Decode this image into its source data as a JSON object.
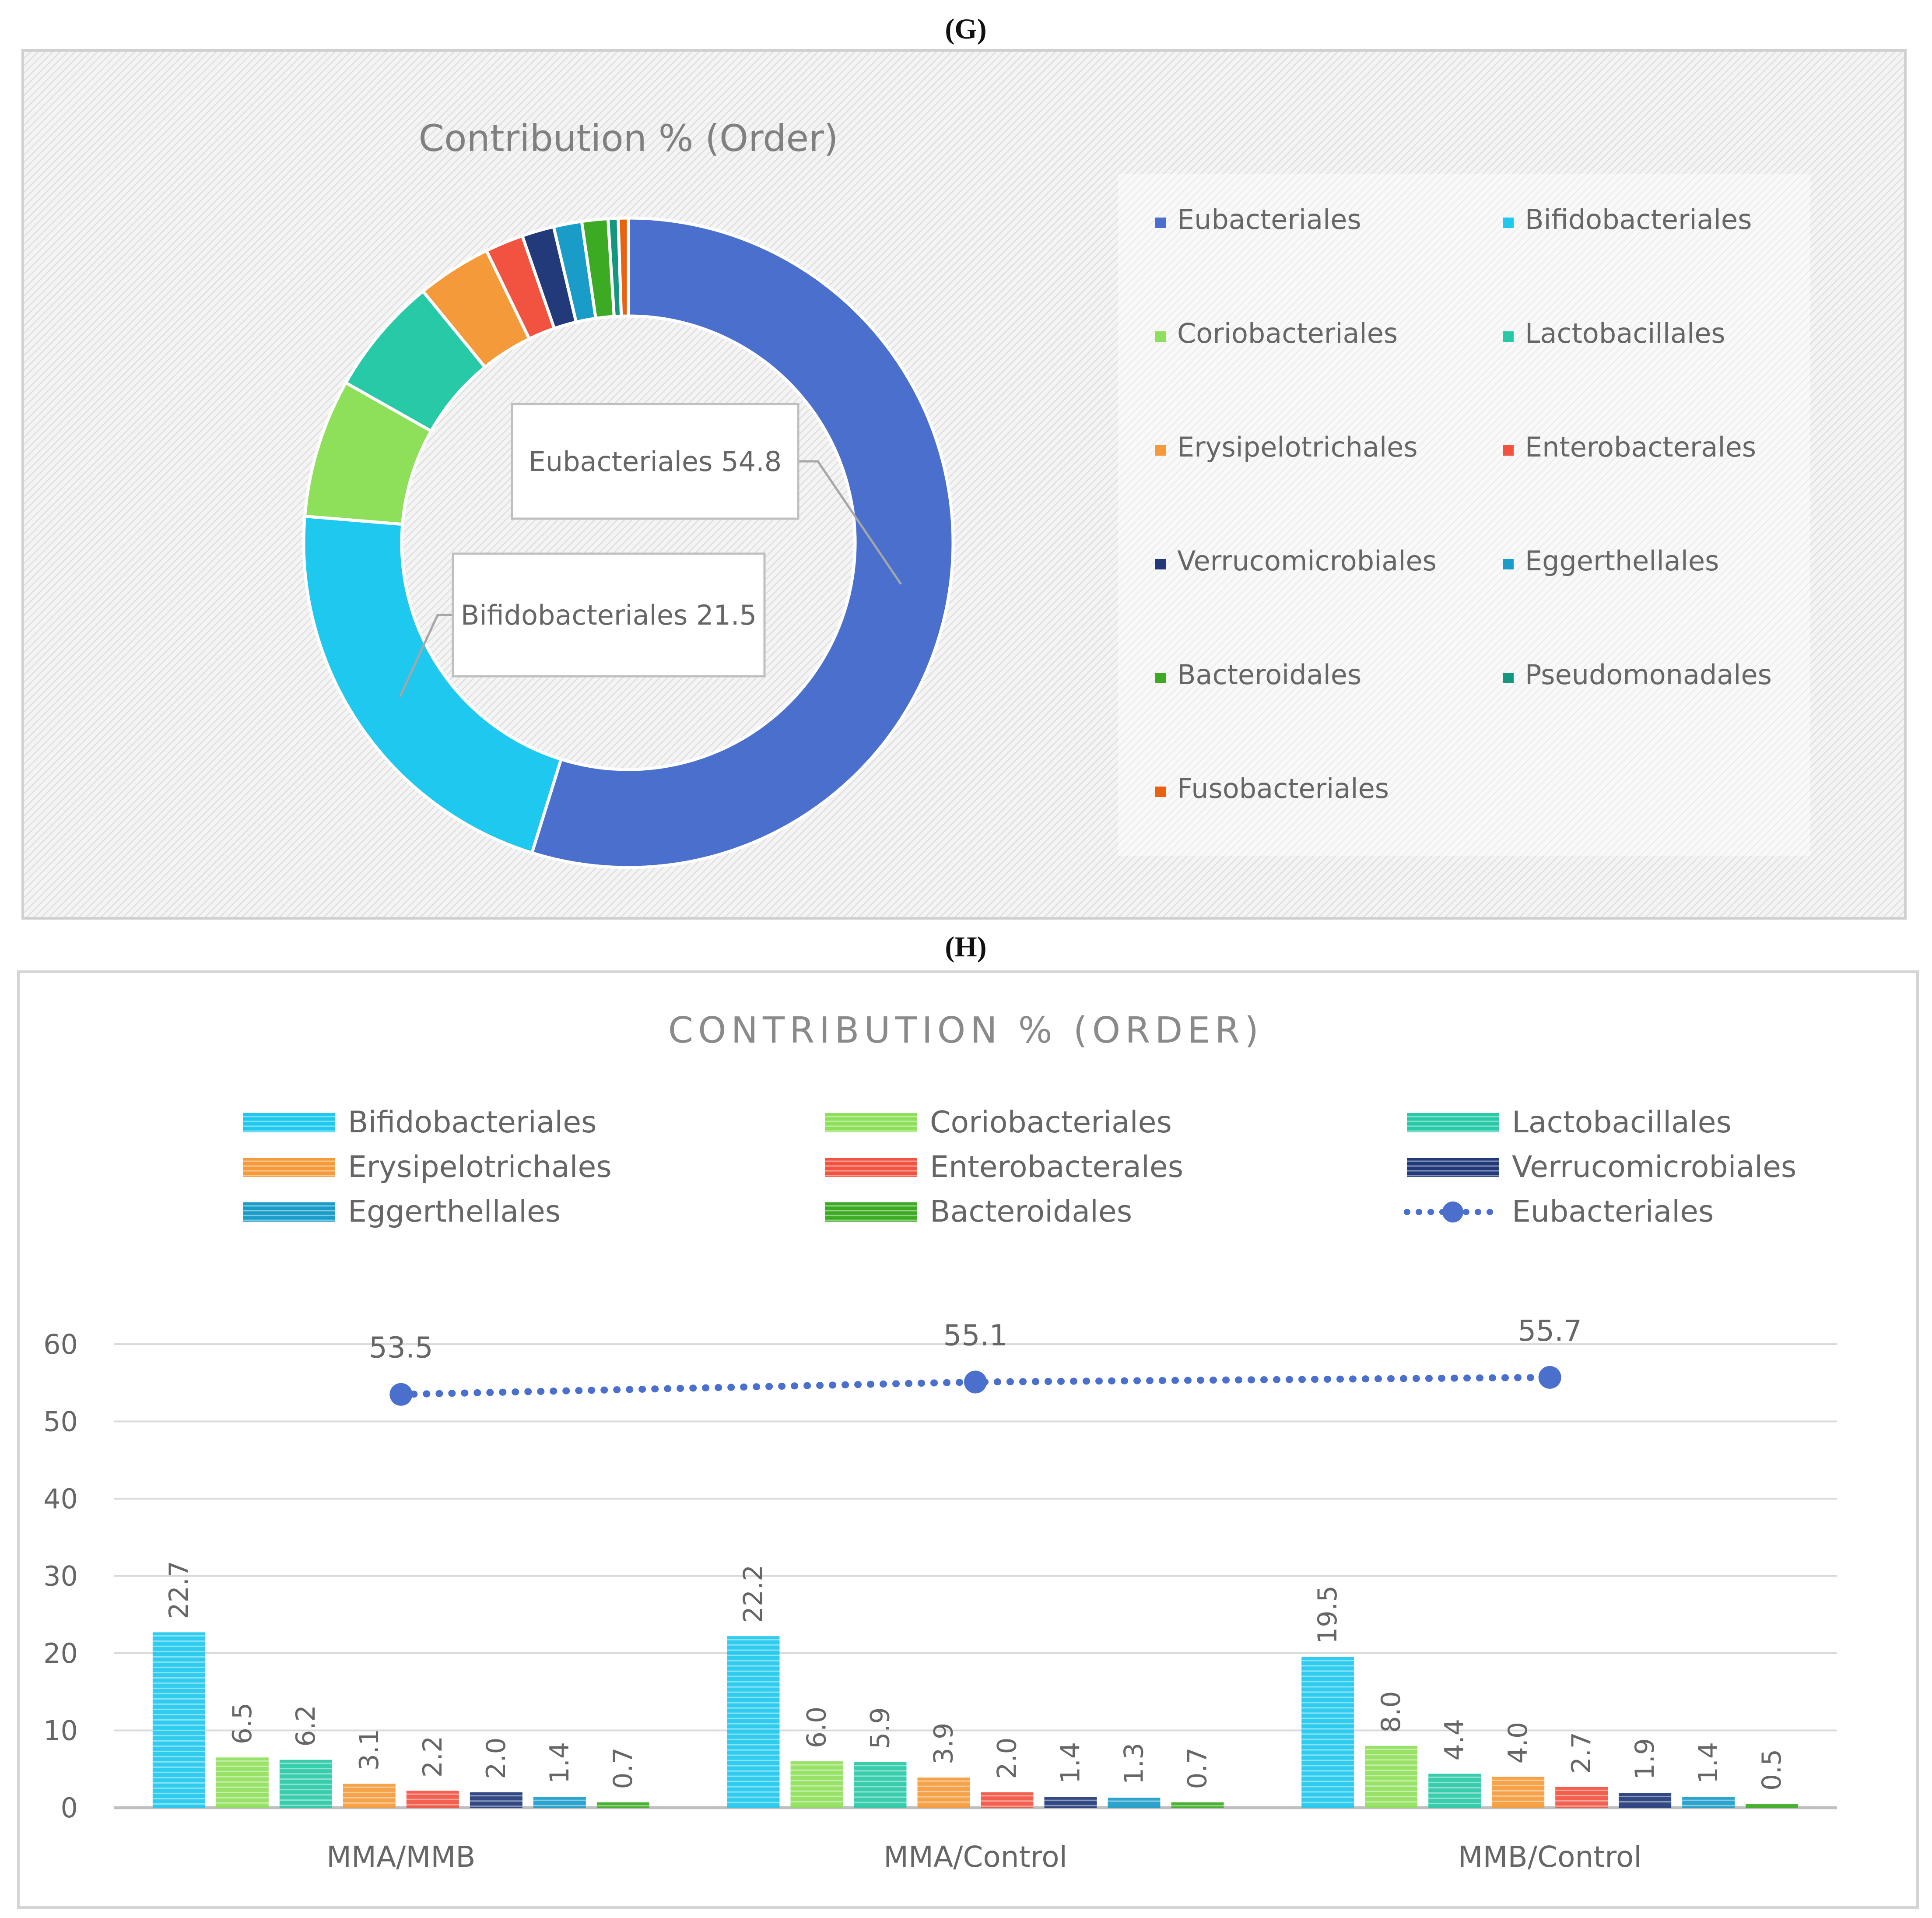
{
  "panels": {
    "g_label": "(G)",
    "h_label": "(H)"
  },
  "colors": {
    "Eubacteriales": "#4a6fcc",
    "Bifidobacteriales": "#1ec8ee",
    "Coriobacteriales": "#8ee05a",
    "Lactobacillales": "#28c9a6",
    "Erysipelotrichales": "#f59a3a",
    "Enterobacterales": "#f25240",
    "Verrucomicrobiales": "#22397a",
    "Eggerthellales": "#1a9cc9",
    "Bacteroidales": "#3cab23",
    "Pseudomonadales": "#13977f",
    "Fusobacteriales": "#e8620f"
  },
  "chart_data": [
    {
      "type": "pie",
      "variant": "donut",
      "title": "Contribution % (Order)",
      "labels": [
        "Eubacteriales",
        "Bifidobacteriales",
        "Coriobacteriales",
        "Lactobacillales",
        "Erysipelotrichales",
        "Enterobacterales",
        "Verrucomicrobiales",
        "Eggerthellales",
        "Bacteroidales",
        "Pseudomonadales",
        "Fusobacteriales"
      ],
      "values": [
        54.8,
        21.5,
        6.9,
        5.9,
        3.7,
        1.9,
        1.6,
        1.4,
        1.3,
        0.5,
        0.5
      ],
      "callouts": [
        {
          "label": "Eubacteriales",
          "value": "54.8"
        },
        {
          "label": "Bifidobacteriales",
          "value": "21.5"
        }
      ],
      "legend": "right"
    },
    {
      "type": "bar",
      "title": "CONTRIBUTION % (ORDER)",
      "categories": [
        "MMA/MMB",
        "MMA/Control",
        "MMB/Control"
      ],
      "series": [
        {
          "name": "Bifidobacteriales",
          "values": [
            22.7,
            22.2,
            19.5
          ]
        },
        {
          "name": "Coriobacteriales",
          "values": [
            6.5,
            6.0,
            8.0
          ]
        },
        {
          "name": "Lactobacillales",
          "values": [
            6.2,
            5.9,
            4.4
          ]
        },
        {
          "name": "Erysipelotrichales",
          "values": [
            3.1,
            3.9,
            4.0
          ]
        },
        {
          "name": "Enterobacterales",
          "values": [
            2.2,
            2.0,
            2.7
          ]
        },
        {
          "name": "Verrucomicrobiales",
          "values": [
            2.0,
            1.4,
            1.9
          ]
        },
        {
          "name": "Eggerthellales",
          "values": [
            1.4,
            1.3,
            1.4
          ]
        },
        {
          "name": "Bacteroidales",
          "values": [
            0.7,
            0.7,
            0.5
          ]
        }
      ],
      "line_series": {
        "name": "Eubacteriales",
        "values": [
          53.5,
          55.1,
          55.7
        ]
      },
      "yticks": [
        0,
        10,
        20,
        30,
        40,
        50,
        60
      ],
      "ylim": [
        0,
        60
      ],
      "legend": "top",
      "grid": true
    }
  ]
}
